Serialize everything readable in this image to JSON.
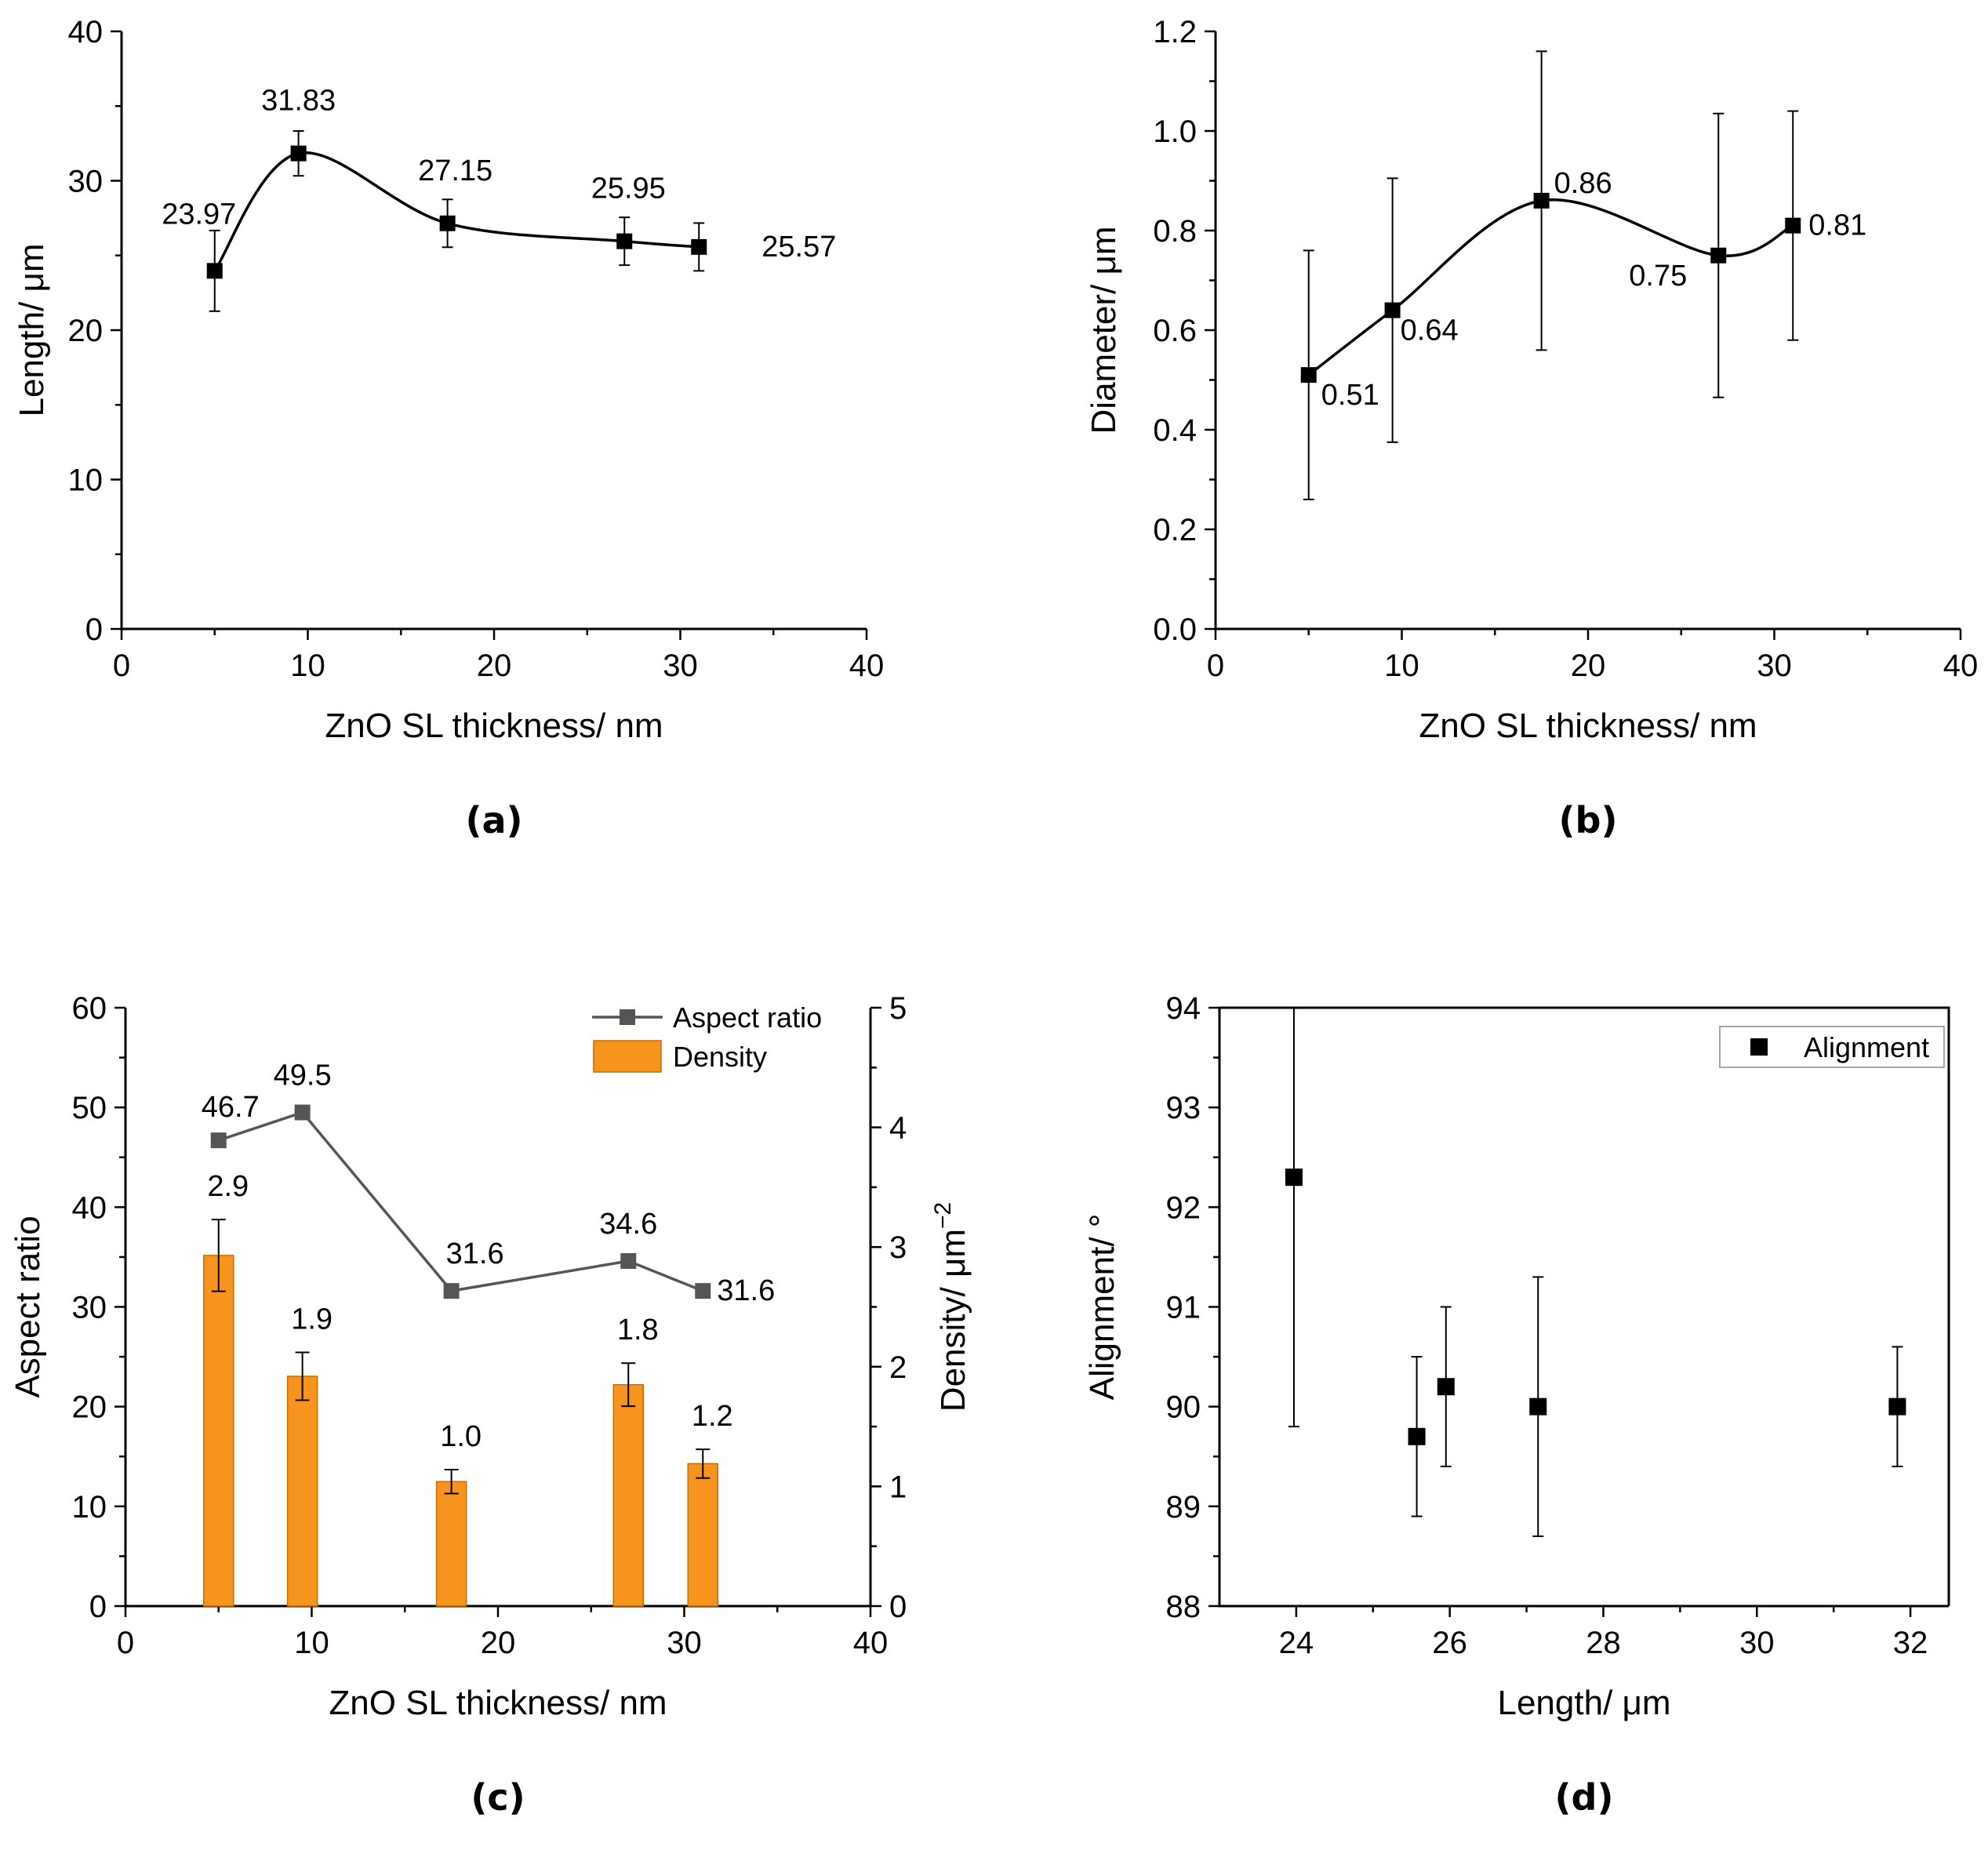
{
  "chart_data": [
    {
      "panel": "(a)",
      "type": "line",
      "xlabel": "ZnO SL thickness/ nm",
      "ylabel": "Length/ μm",
      "xlim": [
        0,
        40
      ],
      "ylim": [
        0,
        40
      ],
      "xticks": [
        0,
        10,
        20,
        30,
        40
      ],
      "yticks": [
        0,
        10,
        20,
        30,
        40
      ],
      "x": [
        5,
        9.5,
        17.5,
        27,
        31
      ],
      "y": [
        23.97,
        31.83,
        27.15,
        25.95,
        25.57
      ],
      "yerr": [
        2.7,
        1.5,
        1.6,
        1.6,
        1.6
      ],
      "labels": [
        "23.97",
        "31.83",
        "27.15",
        "25.95",
        "25.57"
      ],
      "smooth": true
    },
    {
      "panel": "(b)",
      "type": "line",
      "xlabel": "ZnO SL thickness/ nm",
      "ylabel": "Diameter/ μm",
      "xlim": [
        0,
        40
      ],
      "ylim": [
        0,
        1.2
      ],
      "xticks": [
        0,
        10,
        20,
        30,
        40
      ],
      "yticks": [
        "0.0",
        "0.2",
        "0.4",
        "0.6",
        "0.8",
        "1.0",
        "1.2"
      ],
      "x": [
        5,
        9.5,
        17.5,
        27,
        31
      ],
      "y": [
        0.51,
        0.64,
        0.86,
        0.75,
        0.81
      ],
      "yerr": [
        0.25,
        0.265,
        0.3,
        0.285,
        0.23
      ],
      "labels": [
        "0.51",
        "0.64",
        "0.86",
        "0.75",
        "0.81"
      ],
      "smooth": true
    },
    {
      "panel": "(c)",
      "type": "bar",
      "xlabel": "ZnO SL thickness/ nm",
      "ylabel": "Aspect ratio",
      "y2label": "Density/ μm",
      "y2label_sup": "−2",
      "xlim": [
        0,
        40
      ],
      "ylim": [
        0,
        60
      ],
      "y2lim": [
        0,
        5
      ],
      "xticks": [
        0,
        10,
        20,
        30,
        40
      ],
      "yticks": [
        0,
        10,
        20,
        30,
        40,
        50,
        60
      ],
      "y2ticks": [
        0,
        1,
        2,
        3,
        4,
        5
      ],
      "x": [
        5,
        9.5,
        17.5,
        27,
        31
      ],
      "series": [
        {
          "name": "Aspect ratio",
          "type": "line",
          "axis": "left",
          "color": "#555555",
          "values": [
            46.7,
            49.5,
            31.6,
            34.6,
            31.6
          ],
          "labels": [
            "46.7",
            "49.5",
            "31.6",
            "34.6",
            "31.6"
          ]
        },
        {
          "name": "Density",
          "type": "bar",
          "axis": "right",
          "color": "#f7941d",
          "values": [
            2.93,
            1.92,
            1.04,
            1.85,
            1.19
          ],
          "errors": [
            0.3,
            0.2,
            0.1,
            0.18,
            0.12
          ],
          "labels": [
            "2.9",
            "1.9",
            "1.0",
            "1.8",
            "1.2"
          ]
        }
      ],
      "legend": "top-right"
    },
    {
      "panel": "(d)",
      "type": "scatter",
      "xlabel": "Length/ μm",
      "ylabel": "Alignment/ °",
      "xlim": [
        23,
        32.5
      ],
      "ylim": [
        88,
        94
      ],
      "xticks": [
        24,
        26,
        28,
        30,
        32
      ],
      "yticks": [
        88,
        89,
        90,
        91,
        92,
        93,
        94
      ],
      "x": [
        23.97,
        25.57,
        25.95,
        27.15,
        31.83
      ],
      "y": [
        92.3,
        89.7,
        90.2,
        90.0,
        90.0
      ],
      "yerr_low": [
        2.5,
        0.8,
        0.8,
        1.3,
        0.6
      ],
      "yerr_high": [
        1.7,
        0.8,
        0.8,
        1.3,
        0.6
      ],
      "series_name": "Alignment",
      "legend": "top-right"
    }
  ]
}
